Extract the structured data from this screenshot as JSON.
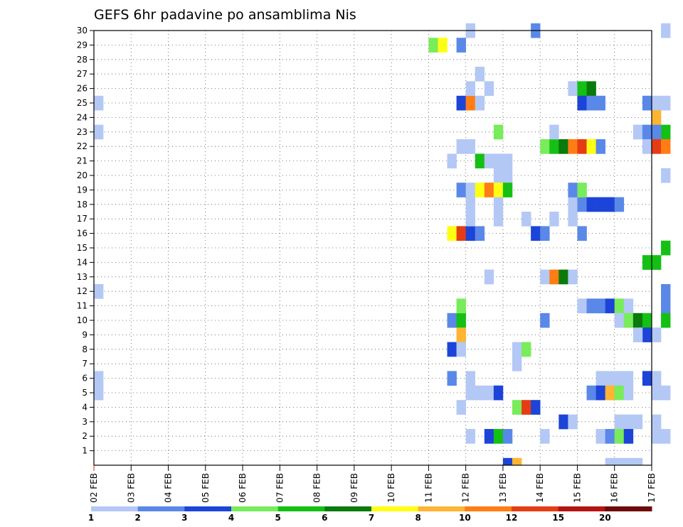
{
  "chart_data": {
    "type": "heatmap",
    "title": "GEFS 6hr padavine po ansamblima Nis",
    "x_tick_labels": [
      "02 FEB",
      "03 FEB",
      "04 FEB",
      "05 FEB",
      "06 FEB",
      "07 FEB",
      "08 FEB",
      "09 FEB",
      "10 FEB",
      "11 FEB",
      "12 FEB",
      "13 FEB",
      "14 FEB",
      "15 FEB",
      "16 FEB",
      "17 FEB"
    ],
    "y_tick_labels": [
      "1",
      "2",
      "3",
      "4",
      "5",
      "6",
      "7",
      "8",
      "9",
      "10",
      "11",
      "12",
      "13",
      "14",
      "15",
      "16",
      "17",
      "18",
      "19",
      "20",
      "21",
      "22",
      "23",
      "24",
      "25",
      "26",
      "27",
      "28",
      "29",
      "30"
    ],
    "x_range_days": [
      0,
      15
    ],
    "time_step_hours": 6,
    "y_range": [
      0,
      30
    ],
    "grid": "dotted",
    "colorbar": {
      "labels": [
        "1",
        "2",
        "3",
        "4",
        "5",
        "6",
        "7",
        "8",
        "10",
        "12",
        "15",
        "20"
      ],
      "colors": [
        "#b4c8f5",
        "#5a88e8",
        "#1c44d8",
        "#78ec5a",
        "#14c014",
        "#0a7a0a",
        "#ffff14",
        "#ffb432",
        "#ff7d14",
        "#e63c14",
        "#b41414",
        "#6e0a0a"
      ]
    },
    "cells_note": "each cell: [x_index (6h step from 02 FEB 00Z), member (y), color_class 1-12]",
    "cells": [
      [
        0,
        25,
        1
      ],
      [
        0,
        23,
        1
      ],
      [
        0,
        12,
        1
      ],
      [
        0,
        6,
        1
      ],
      [
        0,
        5,
        1
      ],
      [
        36,
        29,
        4
      ],
      [
        37,
        29,
        7
      ],
      [
        39,
        29,
        2
      ],
      [
        38,
        21,
        1
      ],
      [
        38,
        16,
        7
      ],
      [
        39,
        16,
        10
      ],
      [
        40,
        16,
        3
      ],
      [
        41,
        16,
        2
      ],
      [
        38,
        10,
        2
      ],
      [
        39,
        10,
        5
      ],
      [
        39,
        9,
        8
      ],
      [
        38,
        8,
        3
      ],
      [
        38,
        6,
        2
      ],
      [
        39,
        25,
        3
      ],
      [
        40,
        25,
        9
      ],
      [
        41,
        25,
        1
      ],
      [
        40,
        26,
        1
      ],
      [
        41,
        27,
        1
      ],
      [
        40,
        30,
        1
      ],
      [
        39,
        22,
        1
      ],
      [
        40,
        22,
        1
      ],
      [
        41,
        21,
        5
      ],
      [
        42,
        21,
        1
      ],
      [
        43,
        21,
        1
      ],
      [
        44,
        21,
        1
      ],
      [
        44,
        20,
        1
      ],
      [
        43,
        20,
        1
      ],
      [
        39,
        19,
        2
      ],
      [
        40,
        19,
        1
      ],
      [
        41,
        19,
        7
      ],
      [
        42,
        19,
        9
      ],
      [
        43,
        19,
        7
      ],
      [
        44,
        19,
        5
      ],
      [
        40,
        18,
        1
      ],
      [
        43,
        18,
        1
      ],
      [
        40,
        17,
        1
      ],
      [
        43,
        17,
        1
      ],
      [
        42,
        26,
        1
      ],
      [
        43,
        23,
        4
      ],
      [
        39,
        11,
        4
      ],
      [
        39,
        8,
        1
      ],
      [
        40,
        6,
        1
      ],
      [
        40,
        5,
        1
      ],
      [
        41,
        5,
        1
      ],
      [
        42,
        5,
        1
      ],
      [
        43,
        5,
        3
      ],
      [
        39,
        4,
        1
      ],
      [
        40,
        2,
        1
      ],
      [
        42,
        2,
        3
      ],
      [
        43,
        2,
        5
      ],
      [
        44,
        2,
        2
      ],
      [
        42,
        13,
        1
      ],
      [
        44,
        0,
        3
      ],
      [
        45,
        0,
        8
      ],
      [
        45,
        4,
        4
      ],
      [
        46,
        4,
        10
      ],
      [
        47,
        4,
        3
      ],
      [
        45,
        8,
        1
      ],
      [
        46,
        8,
        4
      ],
      [
        45,
        7,
        1
      ],
      [
        47,
        30,
        2
      ],
      [
        46,
        17,
        1
      ],
      [
        47,
        16,
        3
      ],
      [
        48,
        16,
        2
      ],
      [
        49,
        17,
        1
      ],
      [
        48,
        13,
        1
      ],
      [
        49,
        13,
        9
      ],
      [
        50,
        13,
        6
      ],
      [
        51,
        13,
        1
      ],
      [
        48,
        10,
        2
      ],
      [
        48,
        2,
        1
      ],
      [
        50,
        3,
        3
      ],
      [
        51,
        3,
        1
      ],
      [
        48,
        22,
        4
      ],
      [
        49,
        22,
        5
      ],
      [
        50,
        22,
        6
      ],
      [
        51,
        22,
        9
      ],
      [
        52,
        22,
        10
      ],
      [
        53,
        22,
        7
      ],
      [
        54,
        22,
        2
      ],
      [
        49,
        23,
        1
      ],
      [
        51,
        26,
        1
      ],
      [
        52,
        26,
        5
      ],
      [
        53,
        26,
        6
      ],
      [
        52,
        25,
        3
      ],
      [
        53,
        25,
        2
      ],
      [
        54,
        25,
        2
      ],
      [
        51,
        18,
        1
      ],
      [
        52,
        18,
        2
      ],
      [
        53,
        18,
        3
      ],
      [
        54,
        18,
        3
      ],
      [
        55,
        18,
        3
      ],
      [
        56,
        18,
        2
      ],
      [
        51,
        19,
        2
      ],
      [
        52,
        19,
        4
      ],
      [
        51,
        17,
        1
      ],
      [
        52,
        16,
        2
      ],
      [
        52,
        11,
        1
      ],
      [
        53,
        11,
        2
      ],
      [
        54,
        11,
        2
      ],
      [
        55,
        11,
        3
      ],
      [
        56,
        11,
        4
      ],
      [
        57,
        11,
        1
      ],
      [
        56,
        10,
        1
      ],
      [
        57,
        10,
        4
      ],
      [
        58,
        10,
        6
      ],
      [
        59,
        10,
        5
      ],
      [
        59,
        9,
        3
      ],
      [
        58,
        9,
        1
      ],
      [
        60,
        9,
        1
      ],
      [
        54,
        6,
        1
      ],
      [
        55,
        6,
        1
      ],
      [
        56,
        6,
        1
      ],
      [
        57,
        6,
        1
      ],
      [
        59,
        6,
        3
      ],
      [
        60,
        6,
        1
      ],
      [
        53,
        5,
        2
      ],
      [
        54,
        5,
        3
      ],
      [
        55,
        5,
        8
      ],
      [
        56,
        5,
        4
      ],
      [
        57,
        5,
        1
      ],
      [
        60,
        5,
        1
      ],
      [
        61,
        5,
        1
      ],
      [
        56,
        3,
        1
      ],
      [
        57,
        3,
        1
      ],
      [
        58,
        3,
        1
      ],
      [
        60,
        3,
        1
      ],
      [
        54,
        2,
        1
      ],
      [
        55,
        2,
        2
      ],
      [
        56,
        2,
        4
      ],
      [
        57,
        2,
        3
      ],
      [
        60,
        2,
        1
      ],
      [
        61,
        2,
        1
      ],
      [
        55,
        0,
        1
      ],
      [
        56,
        0,
        1
      ],
      [
        57,
        0,
        1
      ],
      [
        58,
        0,
        1
      ],
      [
        59,
        25,
        2
      ],
      [
        60,
        25,
        1
      ],
      [
        61,
        25,
        1
      ],
      [
        58,
        23,
        1
      ],
      [
        59,
        23,
        2
      ],
      [
        60,
        24,
        8
      ],
      [
        61,
        23,
        5
      ],
      [
        60,
        23,
        2
      ],
      [
        59,
        22,
        1
      ],
      [
        60,
        22,
        10
      ],
      [
        61,
        22,
        9
      ],
      [
        61,
        20,
        1
      ],
      [
        61,
        15,
        5
      ],
      [
        59,
        14,
        5
      ],
      [
        60,
        14,
        5
      ],
      [
        61,
        12,
        2
      ],
      [
        61,
        11,
        2
      ],
      [
        61,
        10,
        5
      ],
      [
        61,
        30,
        1
      ]
    ]
  }
}
